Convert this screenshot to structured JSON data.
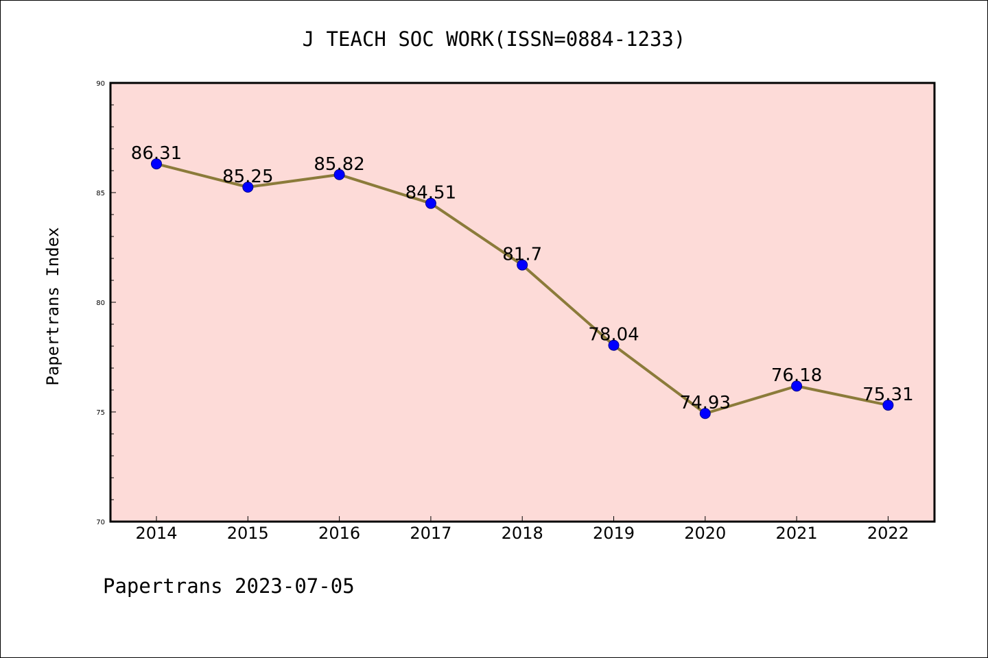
{
  "footer": "Papertrans 2023-07-05",
  "colors": {
    "plot_background": "#fddbd8",
    "line": "#8b7b3a",
    "marker": "#0000ff",
    "marker_edge": "#00008b"
  },
  "chart_data": {
    "type": "line",
    "title": "J TEACH SOC WORK(ISSN=0884-1233)",
    "xlabel": "",
    "ylabel": "Papertrans Index",
    "categories": [
      "2014",
      "2015",
      "2016",
      "2017",
      "2018",
      "2019",
      "2020",
      "2021",
      "2022"
    ],
    "series": [
      {
        "values": [
          86.31,
          85.25,
          85.82,
          84.51,
          81.7,
          78.04,
          74.93,
          76.18,
          75.31
        ],
        "labels": [
          "86.31",
          "85.25",
          "85.82",
          "84.51",
          "81.7",
          "78.04",
          "74.93",
          "76.18",
          "75.31"
        ]
      }
    ],
    "ylim": [
      70,
      90
    ],
    "yticks": [
      70,
      75,
      80,
      85,
      90
    ],
    "grid": false,
    "legend": "none"
  }
}
